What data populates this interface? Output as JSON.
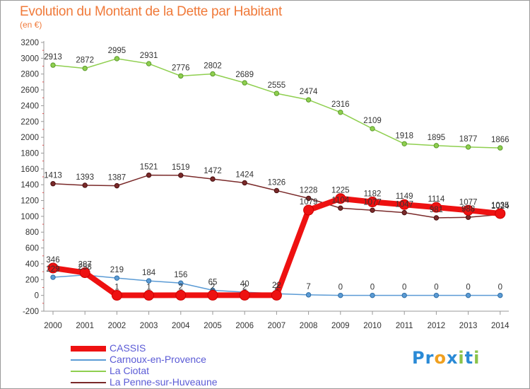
{
  "header": {
    "title": "Evolution du Montant de la Dette par Habitant",
    "subtitle": "(en €)"
  },
  "logo": {
    "letters": [
      "P",
      "r",
      "o",
      "x",
      "i",
      "t",
      "i"
    ],
    "colors": [
      "#2a8ad6",
      "#2a8ad6",
      "#f0a020",
      "#2a8ad6",
      "#8bc34a",
      "#2a8ad6",
      "#8bc34a"
    ]
  },
  "chart_data": {
    "type": "line",
    "title": "Evolution du Montant de la Dette par Habitant",
    "subtitle": "(en €)",
    "xlabel": "",
    "ylabel": "",
    "x": [
      "2000",
      "2001",
      "2002",
      "2003",
      "2004",
      "2005",
      "2006",
      "2007",
      "2008",
      "2009",
      "2010",
      "2011",
      "2012",
      "2013",
      "2014"
    ],
    "ylim": [
      -200,
      3200
    ],
    "yticks": [
      -200,
      0,
      200,
      400,
      600,
      800,
      1000,
      1200,
      1400,
      1600,
      1800,
      2000,
      2200,
      2400,
      2600,
      2800,
      3000,
      3200
    ],
    "grid": false,
    "legend_position": "bottom-left",
    "series": [
      {
        "name": "CASSIS",
        "color": "#ee1111",
        "values": [
          346,
          287,
          1,
          1,
          2,
          2,
          2,
          2,
          1079,
          1225,
          1182,
          1149,
          1114,
          1077,
          1035
        ],
        "labels": [
          "346",
          "287",
          "1",
          "1",
          "2",
          "2",
          "2",
          "2",
          "1079",
          "1225",
          "1182",
          "1149",
          "1114",
          "1077",
          "1035"
        ]
      },
      {
        "name": "Carnoux-en-Provence",
        "color": "#5b9bd5",
        "values": [
          229,
          258,
          219,
          184,
          156,
          65,
          40,
          22,
          7,
          0,
          0,
          0,
          0,
          0,
          0
        ],
        "labels": [
          "229",
          "258",
          "219",
          "184",
          "156",
          "65",
          "40",
          "22",
          "7",
          "0",
          "0",
          "0",
          "0",
          "0",
          "0"
        ]
      },
      {
        "name": "La Ciotat",
        "color": "#8fcf4f",
        "values": [
          2913,
          2872,
          2995,
          2931,
          2776,
          2802,
          2689,
          2555,
          2474,
          2316,
          2109,
          1918,
          1895,
          1877,
          1866
        ],
        "labels": [
          "2913",
          "2872",
          "2995",
          "2931",
          "2776",
          "2802",
          "2689",
          "2555",
          "2474",
          "2316",
          "2109",
          "1918",
          "1895",
          "1877",
          "1866"
        ]
      },
      {
        "name": "La Penne-sur-Huveaune",
        "color": "#7a2a2a",
        "values": [
          1413,
          1393,
          1387,
          1521,
          1519,
          1472,
          1424,
          1326,
          1228,
          1104,
          1077,
          1047,
          981,
          988,
          1024
        ],
        "labels": [
          "1413",
          "1393",
          "1387",
          "1521",
          "1519",
          "1472",
          "1424",
          "1326",
          "1228",
          "1104",
          "1077",
          "1047",
          "981",
          "988",
          "1024"
        ]
      }
    ]
  }
}
